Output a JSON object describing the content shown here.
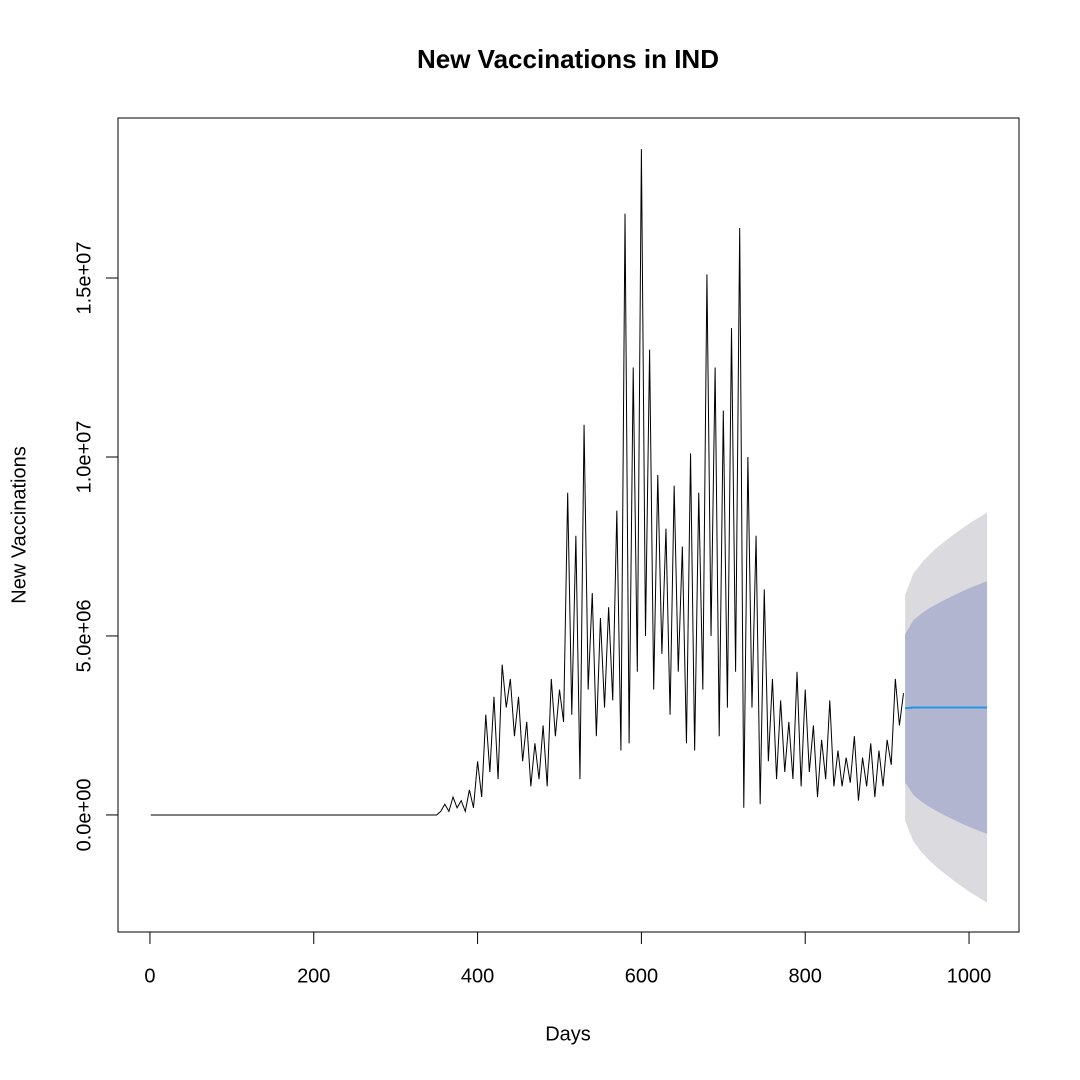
{
  "chart_data": {
    "type": "forecast",
    "title": "New Vaccinations in IND",
    "xlabel": "Days",
    "ylabel": "New Vaccinations",
    "color": "#000000",
    "x": [
      1,
      350,
      355,
      360,
      365,
      370,
      375,
      380,
      385,
      390,
      395,
      400,
      405,
      410,
      415,
      420,
      425,
      430,
      435,
      440,
      445,
      450,
      455,
      460,
      465,
      470,
      475,
      480,
      485,
      490,
      495,
      500,
      505,
      510,
      515,
      520,
      525,
      530,
      535,
      540,
      545,
      550,
      555,
      560,
      565,
      570,
      575,
      580,
      585,
      590,
      595,
      600,
      605,
      610,
      615,
      620,
      625,
      630,
      635,
      640,
      645,
      650,
      655,
      660,
      665,
      670,
      675,
      680,
      685,
      690,
      695,
      700,
      705,
      710,
      715,
      720,
      725,
      730,
      735,
      740,
      745,
      750,
      755,
      760,
      765,
      770,
      775,
      780,
      785,
      790,
      795,
      800,
      805,
      810,
      815,
      820,
      825,
      830,
      835,
      840,
      845,
      850,
      855,
      860,
      865,
      870,
      875,
      880,
      885,
      890,
      895,
      900,
      905,
      910,
      915,
      920
    ],
    "values": [
      0,
      0,
      100000.0,
      300000.0,
      100000.0,
      500000.0,
      200000.0,
      400000.0,
      100000.0,
      700000.0,
      200000.0,
      1500000.0,
      500000.0,
      2800000.0,
      1200000.0,
      3300000.0,
      1000000.0,
      4200000.0,
      3000000.0,
      3800000.0,
      2200000.0,
      3300000.0,
      1500000.0,
      2600000.0,
      800000.0,
      2000000.0,
      1000000.0,
      2500000.0,
      800000.0,
      3800000.0,
      2200000.0,
      3500000.0,
      2600000.0,
      9000000.0,
      2800000.0,
      7800000.0,
      1000000.0,
      10900000.0,
      3500000.0,
      6200000.0,
      2200000.0,
      5500000.0,
      3000000.0,
      5800000.0,
      3200000.0,
      8500000.0,
      1800000.0,
      16800000.0,
      2000000.0,
      12500000.0,
      4000000.0,
      18600000.0,
      5000000.0,
      13000000.0,
      3500000.0,
      9500000.0,
      4500000.0,
      8000000.0,
      2800000.0,
      9200000.0,
      4000000.0,
      7500000.0,
      2000000.0,
      10100000.0,
      1800000.0,
      9000000.0,
      3500000.0,
      15100000.0,
      5000000.0,
      12500000.0,
      2200000.0,
      11300000.0,
      3000000.0,
      13600000.0,
      4000000.0,
      16400000.0,
      200000.0,
      10000000.0,
      3000000.0,
      7800000.0,
      300000.0,
      6300000.0,
      1500000.0,
      3800000.0,
      1000000.0,
      3200000.0,
      1200000.0,
      2600000.0,
      1000000.0,
      4000000.0,
      800000.0,
      3500000.0,
      1200000.0,
      2500000.0,
      500000.0,
      2100000.0,
      1000000.0,
      3200000.0,
      800000.0,
      1800000.0,
      800000.0,
      1600000.0,
      900000.0,
      2200000.0,
      400000.0,
      1600000.0,
      800000.0,
      2000000.0,
      500000.0,
      1800000.0,
      800000.0,
      2100000.0,
      1400000.0,
      3800000.0,
      2500000.0,
      3400000.0
    ],
    "forecast": {
      "x": [
        922,
        932,
        942,
        952,
        962,
        972,
        982,
        992,
        1002,
        1012,
        1022
      ],
      "mean": [
        2980000.0,
        3000000.0,
        3000000.0,
        3000000.0,
        3000000.0,
        3000000.0,
        3000000.0,
        3000000.0,
        3000000.0,
        3000000.0,
        3000000.0
      ],
      "color": "#2297e6",
      "bands": [
        {
          "color": "#dbdbdf",
          "lower": [
            -170000.0,
            -740000.0,
            -1040000.0,
            -1280000.0,
            -1490000.0,
            -1670000.0,
            -1850000.0,
            -2010000.0,
            -2170000.0,
            -2310000.0,
            -2450000.0
          ],
          "upper": [
            6150000.0,
            6740000.0,
            7040000.0,
            7280000.0,
            7490000.0,
            7670000.0,
            7850000.0,
            8010000.0,
            8170000.0,
            8310000.0,
            8450000.0
          ]
        },
        {
          "color": "#b1b5cf",
          "lower": [
            910000.0,
            560000.0,
            370000.0,
            220000.0,
            90000.0,
            -30000.0,
            -140000.0,
            -250000.0,
            -350000.0,
            -440000.0,
            -530000.0
          ],
          "upper": [
            5050000.0,
            5440000.0,
            5630000.0,
            5780000.0,
            5910000.0,
            6030000.0,
            6140000.0,
            6250000.0,
            6350000.0,
            6440000.0,
            6530000.0
          ]
        }
      ]
    },
    "xlim": [
      -39,
      1061
    ],
    "ylim": [
      -3270000.0,
      19470000.0
    ],
    "xticks": [
      0,
      200,
      400,
      600,
      800,
      1000
    ],
    "yticks": [
      {
        "value": 0,
        "label": "0.0e+00"
      },
      {
        "value": 5000000,
        "label": "5.0e+06"
      },
      {
        "value": 10000000,
        "label": "1.0e+07"
      },
      {
        "value": 15000000,
        "label": "1.5e+07"
      }
    ]
  }
}
